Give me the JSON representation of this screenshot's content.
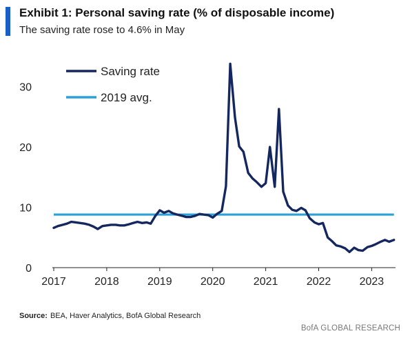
{
  "header": {
    "title": "Exhibit 1: Personal saving rate (% of disposable income)",
    "subtitle": "The saving rate rose to 4.6% in May"
  },
  "colors": {
    "accent": "#1a5fc8",
    "saving_rate": "#14275e",
    "avg_2019": "#2aa2d8",
    "axis": "#222222"
  },
  "footer": {
    "source_label": "Source:",
    "source_text": "BEA, Haver Analytics, BofA Global Research",
    "brand": "BofA GLOBAL RESEARCH"
  },
  "chart_data": {
    "type": "line",
    "title": "Personal saving rate (% of disposable income)",
    "xlabel": "",
    "ylabel": "",
    "xlim": [
      2017,
      2023.45
    ],
    "ylim": [
      0,
      35
    ],
    "x_ticks": [
      "2017",
      "2018",
      "2019",
      "2020",
      "2021",
      "2022",
      "2023"
    ],
    "y_ticks": [
      0,
      10,
      20,
      30
    ],
    "grid": false,
    "legend_position": "top-left",
    "series": [
      {
        "name": "Saving rate",
        "style": "line",
        "points": [
          [
            2017.0,
            6.6
          ],
          [
            2017.08,
            6.9
          ],
          [
            2017.17,
            7.1
          ],
          [
            2017.25,
            7.3
          ],
          [
            2017.33,
            7.6
          ],
          [
            2017.42,
            7.5
          ],
          [
            2017.5,
            7.4
          ],
          [
            2017.58,
            7.3
          ],
          [
            2017.67,
            7.1
          ],
          [
            2017.75,
            6.8
          ],
          [
            2017.83,
            6.4
          ],
          [
            2017.92,
            6.9
          ],
          [
            2018.0,
            7.0
          ],
          [
            2018.08,
            7.1
          ],
          [
            2018.17,
            7.1
          ],
          [
            2018.25,
            7.0
          ],
          [
            2018.33,
            7.0
          ],
          [
            2018.42,
            7.2
          ],
          [
            2018.5,
            7.4
          ],
          [
            2018.58,
            7.6
          ],
          [
            2018.67,
            7.4
          ],
          [
            2018.75,
            7.5
          ],
          [
            2018.83,
            7.3
          ],
          [
            2018.92,
            8.6
          ],
          [
            2019.0,
            9.5
          ],
          [
            2019.08,
            9.1
          ],
          [
            2019.17,
            9.4
          ],
          [
            2019.25,
            9.0
          ],
          [
            2019.33,
            8.8
          ],
          [
            2019.42,
            8.6
          ],
          [
            2019.5,
            8.4
          ],
          [
            2019.58,
            8.4
          ],
          [
            2019.67,
            8.6
          ],
          [
            2019.75,
            8.9
          ],
          [
            2019.83,
            8.8
          ],
          [
            2019.92,
            8.7
          ],
          [
            2020.0,
            8.3
          ],
          [
            2020.08,
            8.9
          ],
          [
            2020.17,
            9.4
          ],
          [
            2020.25,
            13.5
          ],
          [
            2020.33,
            33.8
          ],
          [
            2020.42,
            24.9
          ],
          [
            2020.5,
            20.1
          ],
          [
            2020.58,
            19.2
          ],
          [
            2020.67,
            15.7
          ],
          [
            2020.75,
            14.8
          ],
          [
            2020.83,
            14.2
          ],
          [
            2020.92,
            13.4
          ],
          [
            2021.0,
            14.0
          ],
          [
            2021.08,
            20.0
          ],
          [
            2021.17,
            13.4
          ],
          [
            2021.25,
            26.3
          ],
          [
            2021.33,
            12.6
          ],
          [
            2021.42,
            10.3
          ],
          [
            2021.5,
            9.6
          ],
          [
            2021.58,
            9.4
          ],
          [
            2021.67,
            9.9
          ],
          [
            2021.75,
            9.5
          ],
          [
            2021.83,
            8.2
          ],
          [
            2021.92,
            7.5
          ],
          [
            2022.0,
            7.2
          ],
          [
            2022.08,
            7.4
          ],
          [
            2022.17,
            5.0
          ],
          [
            2022.25,
            4.4
          ],
          [
            2022.33,
            3.7
          ],
          [
            2022.42,
            3.5
          ],
          [
            2022.5,
            3.2
          ],
          [
            2022.58,
            2.6
          ],
          [
            2022.67,
            3.3
          ],
          [
            2022.75,
            2.9
          ],
          [
            2022.83,
            2.8
          ],
          [
            2022.92,
            3.4
          ],
          [
            2023.0,
            3.6
          ],
          [
            2023.08,
            3.9
          ],
          [
            2023.17,
            4.3
          ],
          [
            2023.25,
            4.6
          ],
          [
            2023.33,
            4.3
          ],
          [
            2023.42,
            4.6
          ]
        ]
      },
      {
        "name": "2019 avg.",
        "style": "horizontal",
        "value": 8.8,
        "x": [
          2017.0,
          2023.42
        ]
      }
    ]
  }
}
